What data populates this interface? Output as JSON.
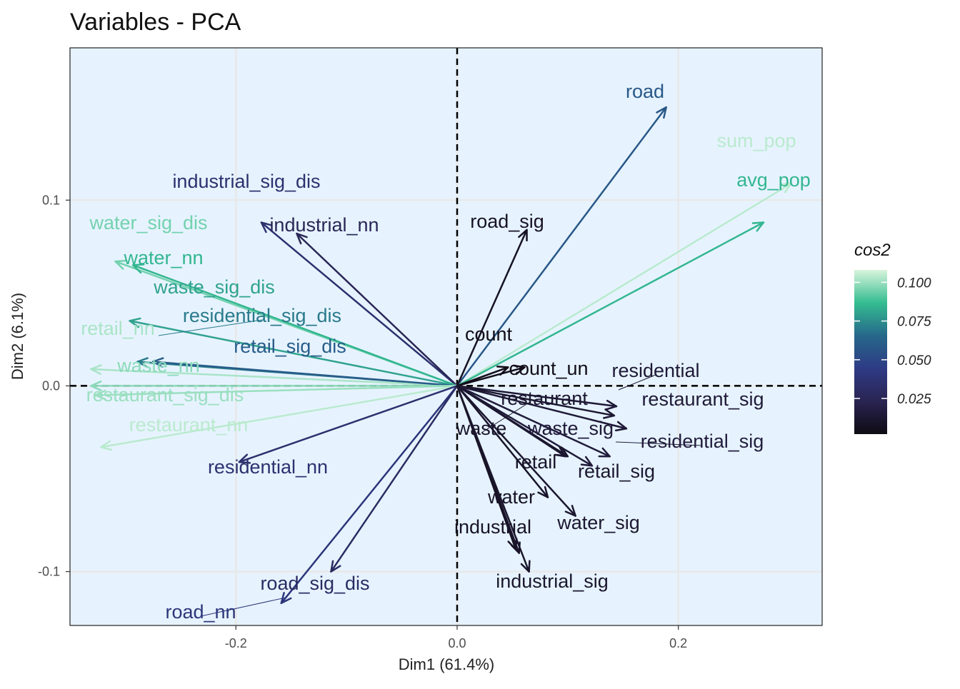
{
  "chart_data": {
    "type": "biplot",
    "title": "Variables - PCA",
    "xlabel": "Dim1 (61.4%)",
    "ylabel": "Dim2 (6.1%)",
    "xlim": [
      -0.35,
      0.33
    ],
    "ylim": [
      -0.129,
      0.182
    ],
    "x_ticks": [
      {
        "value": -0.2,
        "label": "-0.2"
      },
      {
        "value": 0.0,
        "label": "0.0"
      },
      {
        "value": 0.2,
        "label": "0.2"
      }
    ],
    "y_ticks": [
      {
        "value": -0.1,
        "label": "-0.1"
      },
      {
        "value": 0.0,
        "label": "0.0"
      },
      {
        "value": 0.1,
        "label": "0.1"
      }
    ],
    "grid": true,
    "reference_lines": {
      "x": 0,
      "y": 0,
      "style": "dashed"
    },
    "panel_background": "#e6f3ff",
    "legend": {
      "title": "cos2",
      "position": "right",
      "type": "colorbar",
      "range": [
        0.002,
        0.108
      ],
      "ticks": [
        {
          "value": 0.025,
          "label": "0.025"
        },
        {
          "value": 0.05,
          "label": "0.050"
        },
        {
          "value": 0.075,
          "label": "0.075"
        },
        {
          "value": 0.1,
          "label": "0.100"
        }
      ]
    },
    "colormap": [
      {
        "t": 0.0,
        "color": "#0f0b12"
      },
      {
        "t": 0.2,
        "color": "#2a2452"
      },
      {
        "t": 0.4,
        "color": "#2e3b85"
      },
      {
        "t": 0.6,
        "color": "#26688a"
      },
      {
        "t": 0.8,
        "color": "#34bd91"
      },
      {
        "t": 1.0,
        "color": "#d9f4dc"
      }
    ],
    "variables": [
      {
        "name": "road",
        "x": 0.189,
        "y": 0.15,
        "cos2": 0.058
      },
      {
        "name": "sum_pop",
        "x": 0.302,
        "y": 0.109,
        "cos2": 0.104
      },
      {
        "name": "avg_pop",
        "x": 0.277,
        "y": 0.088,
        "cos2": 0.085
      },
      {
        "name": "road_sig",
        "x": 0.063,
        "y": 0.084,
        "cos2": 0.008
      },
      {
        "name": "industrial_sig_dis",
        "x": -0.177,
        "y": 0.088,
        "cos2": 0.035
      },
      {
        "name": "industrial_nn",
        "x": -0.145,
        "y": 0.082,
        "cos2": 0.025
      },
      {
        "name": "water_sig_dis",
        "x": -0.309,
        "y": 0.067,
        "cos2": 0.095
      },
      {
        "name": "water_nn",
        "x": -0.293,
        "y": 0.065,
        "cos2": 0.085
      },
      {
        "name": "waste_sig_dis",
        "x": -0.296,
        "y": 0.035,
        "cos2": 0.08
      },
      {
        "name": "residential_sig_dis",
        "x": -0.289,
        "y": 0.013,
        "cos2": 0.07
      },
      {
        "name": "retail_nn",
        "x": -0.331,
        "y": 0.009,
        "cos2": 0.102
      },
      {
        "name": "retail_sig_dis",
        "x": -0.275,
        "y": 0.013,
        "cos2": 0.06
      },
      {
        "name": "waste_nn",
        "x": -0.331,
        "y": 0.0,
        "cos2": 0.098
      },
      {
        "name": "restaurant_sig_dis",
        "x": -0.327,
        "y": -0.005,
        "cos2": 0.1
      },
      {
        "name": "restaurant_nn",
        "x": -0.322,
        "y": -0.033,
        "cos2": 0.104
      },
      {
        "name": "residential_nn",
        "x": -0.197,
        "y": -0.041,
        "cos2": 0.035
      },
      {
        "name": "road_nn",
        "x": -0.159,
        "y": -0.117,
        "cos2": 0.04
      },
      {
        "name": "road_sig_dis",
        "x": -0.114,
        "y": -0.1,
        "cos2": 0.03
      },
      {
        "name": "count",
        "x": 0.046,
        "y": 0.01,
        "cos2": 0.004
      },
      {
        "name": "count_un",
        "x": 0.061,
        "y": 0.01,
        "cos2": 0.004
      },
      {
        "name": "residential",
        "x": 0.144,
        "y": -0.011,
        "cos2": 0.014
      },
      {
        "name": "restaurant_sig",
        "x": 0.153,
        "y": -0.023,
        "cos2": 0.014
      },
      {
        "name": "restaurant",
        "x": 0.142,
        "y": -0.016,
        "cos2": 0.012
      },
      {
        "name": "residential_sig",
        "x": 0.138,
        "y": -0.038,
        "cos2": 0.016
      },
      {
        "name": "waste_sig",
        "x": 0.122,
        "y": -0.043,
        "cos2": 0.015
      },
      {
        "name": "waste",
        "x": 0.1,
        "y": -0.038,
        "cos2": 0.01
      },
      {
        "name": "retail_sig",
        "x": 0.098,
        "y": -0.038,
        "cos2": 0.012
      },
      {
        "name": "retail",
        "x": 0.082,
        "y": -0.06,
        "cos2": 0.01
      },
      {
        "name": "water_sig",
        "x": 0.107,
        "y": -0.07,
        "cos2": 0.012
      },
      {
        "name": "water",
        "x": 0.053,
        "y": -0.088,
        "cos2": 0.008
      },
      {
        "name": "industrial",
        "x": 0.056,
        "y": -0.09,
        "cos2": 0.009
      },
      {
        "name": "industrial_sig",
        "x": 0.065,
        "y": -0.1,
        "cos2": 0.011
      }
    ]
  }
}
